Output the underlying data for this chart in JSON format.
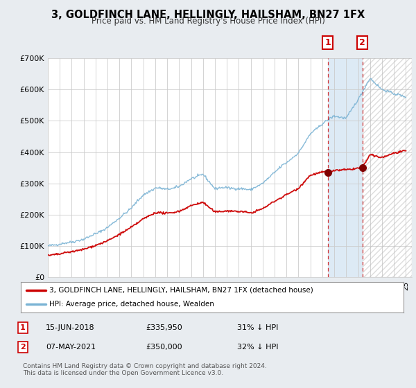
{
  "title": "3, GOLDFINCH LANE, HELLINGLY, HAILSHAM, BN27 1FX",
  "subtitle": "Price paid vs. HM Land Registry's House Price Index (HPI)",
  "legend_line1": "3, GOLDFINCH LANE, HELLINGLY, HAILSHAM, BN27 1FX (detached house)",
  "legend_line2": "HPI: Average price, detached house, Wealden",
  "annotation1_date": "15-JUN-2018",
  "annotation1_price": "£335,950",
  "annotation1_hpi": "31% ↓ HPI",
  "annotation2_date": "07-MAY-2021",
  "annotation2_price": "£350,000",
  "annotation2_hpi": "32% ↓ HPI",
  "footer": "Contains HM Land Registry data © Crown copyright and database right 2024.\nThis data is licensed under the Open Government Licence v3.0.",
  "hpi_color": "#7ab3d4",
  "price_color": "#cc0000",
  "annotation_color": "#cc0000",
  "background_color": "#e8ecf0",
  "plot_bg_color": "#ffffff",
  "shade_color": "#ddeaf5",
  "hatch_color": "#cccccc",
  "ylim": [
    0,
    700000
  ],
  "yticks": [
    0,
    100000,
    200000,
    300000,
    400000,
    500000,
    600000,
    700000
  ],
  "ytick_labels": [
    "£0",
    "£100K",
    "£200K",
    "£300K",
    "£400K",
    "£500K",
    "£600K",
    "£700K"
  ],
  "year_start": 1995,
  "year_end": 2025,
  "sale1_year": 2018.45,
  "sale2_year": 2021.35,
  "sale1_price": 335950,
  "sale2_price": 350000,
  "hpi_points_x": [
    1995,
    1996,
    1997,
    1998,
    1999,
    2000,
    2001,
    2002,
    2003,
    2004,
    2005,
    2006,
    2007,
    2008,
    2009,
    2010,
    2011,
    2012,
    2013,
    2014,
    2015,
    2016,
    2017,
    2018,
    2019,
    2020,
    2021,
    2022,
    2023,
    2024,
    2025
  ],
  "hpi_points_y": [
    100000,
    108000,
    118000,
    128000,
    145000,
    165000,
    195000,
    225000,
    265000,
    290000,
    285000,
    295000,
    320000,
    335000,
    290000,
    295000,
    290000,
    285000,
    305000,
    340000,
    370000,
    400000,
    460000,
    490000,
    510000,
    500000,
    560000,
    630000,
    590000,
    580000,
    570000
  ],
  "price_points_x": [
    1995,
    1996,
    1997,
    1998,
    1999,
    2000,
    2001,
    2002,
    2003,
    2004,
    2005,
    2006,
    2007,
    2008,
    2009,
    2010,
    2011,
    2012,
    2013,
    2014,
    2015,
    2016,
    2017,
    2018,
    2018.45,
    2019,
    2020,
    2021,
    2021.35,
    2022,
    2023,
    2024,
    2025
  ],
  "price_points_y": [
    70000,
    75000,
    82000,
    90000,
    103000,
    118000,
    140000,
    162000,
    188000,
    207000,
    204000,
    210000,
    228000,
    238000,
    206000,
    210000,
    207000,
    203000,
    217000,
    242000,
    263000,
    284000,
    325000,
    335000,
    335950,
    340000,
    342000,
    348000,
    350000,
    390000,
    380000,
    395000,
    400000
  ]
}
